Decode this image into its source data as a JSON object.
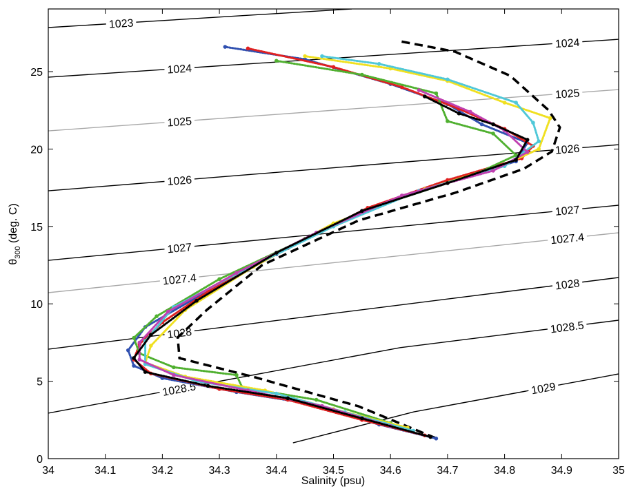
{
  "chart_data": {
    "type": "scatter",
    "xlabel": "Salinity (psu)",
    "ylabel": [
      "θ",
      "300",
      " (deg. C)"
    ],
    "xlim": [
      34,
      35
    ],
    "ylim": [
      0,
      29.05
    ],
    "xticks": [
      34,
      34.1,
      34.2,
      34.3,
      34.4,
      34.5,
      34.6,
      34.7,
      34.8,
      34.9,
      35
    ],
    "yticks": [
      0,
      5,
      10,
      15,
      20,
      25
    ],
    "contours": [
      {
        "labels": [
          "1023"
        ],
        "color": "#000000",
        "x": [
          34,
          34.532
        ],
        "y": [
          27.85,
          29.05
        ]
      },
      {
        "labels": [
          "1024",
          "1024"
        ],
        "color": "#000000",
        "x": [
          34,
          35
        ],
        "y": [
          24.64,
          27.09
        ]
      },
      {
        "labels": [
          "1025",
          "1025"
        ],
        "color": "#a8a8a8",
        "x": [
          34,
          35
        ],
        "y": [
          21.17,
          23.84
        ]
      },
      {
        "labels": [
          "1026",
          "1026"
        ],
        "color": "#000000",
        "x": [
          34,
          35
        ],
        "y": [
          17.3,
          20.28
        ]
      },
      {
        "labels": [
          "1027",
          "1027"
        ],
        "color": "#000000",
        "x": [
          34,
          35
        ],
        "y": [
          12.81,
          16.37
        ]
      },
      {
        "labels": [
          "1027.4",
          "1027.4"
        ],
        "color": "#a8a8a8",
        "x": [
          34,
          35
        ],
        "y": [
          10.72,
          14.59
        ]
      },
      {
        "labels": [
          "1028",
          "1028"
        ],
        "color": "#000000",
        "x": [
          34,
          35
        ],
        "y": [
          7.07,
          11.7
        ]
      },
      {
        "labels": [
          "1028.5",
          "1028.5"
        ],
        "color": "#000000",
        "x": [
          34,
          34.617,
          35
        ],
        "y": [
          2.94,
          7.17,
          8.94
        ]
      },
      {
        "labels": [
          "1029"
        ],
        "color": "#000000",
        "x": [
          34.429,
          34.641,
          35
        ],
        "y": [
          1.02,
          3.02,
          5.47
        ]
      }
    ],
    "envelope": {
      "color": "#000000",
      "x": [
        34.679,
        34.544,
        34.363,
        34.23,
        34.227,
        34.278,
        34.375,
        34.544,
        34.713,
        34.834,
        34.883,
        34.897,
        34.877,
        34.81,
        34.713,
        34.617
      ],
      "y": [
        1.33,
        3.38,
        5.25,
        6.49,
        7.83,
        9.61,
        12.5,
        15.39,
        17.17,
        18.73,
        19.84,
        21.4,
        22.51,
        24.73,
        26.29,
        26.96
      ]
    },
    "series": [
      {
        "color": "#3050b0",
        "x": [
          34.68,
          34.58,
          34.45,
          34.33,
          34.2,
          34.15,
          34.14,
          34.17,
          34.25,
          34.4,
          34.55,
          34.7,
          34.82,
          34.84,
          34.76,
          34.7,
          34.6,
          34.45,
          34.31
        ],
        "values": [
          1.3,
          2.2,
          3.6,
          4.3,
          5.2,
          6.0,
          7.0,
          8.5,
          10.2,
          13.2,
          16.0,
          17.9,
          19.2,
          20.4,
          21.6,
          22.9,
          24.2,
          25.8,
          26.6
        ]
      },
      {
        "color": "#e02020",
        "x": [
          34.66,
          34.55,
          34.42,
          34.3,
          34.18,
          34.15,
          34.16,
          34.2,
          34.28,
          34.42,
          34.56,
          34.7,
          34.83,
          34.85,
          34.8,
          34.72,
          34.62,
          34.5,
          34.35
        ],
        "values": [
          1.5,
          2.5,
          3.8,
          4.5,
          5.5,
          6.4,
          7.4,
          8.8,
          10.8,
          13.6,
          16.2,
          18.0,
          19.4,
          20.2,
          21.3,
          22.6,
          24.0,
          25.3,
          26.5
        ]
      },
      {
        "color": "#50b030",
        "x": [
          34.6,
          34.47,
          34.34,
          34.33,
          34.22,
          34.16,
          34.15,
          34.19,
          34.3,
          34.45,
          34.6,
          34.75,
          34.82,
          34.78,
          34.7,
          34.68,
          34.55,
          34.4
        ],
        "values": [
          2.3,
          3.8,
          4.6,
          5.4,
          5.9,
          6.8,
          7.8,
          9.2,
          11.6,
          14.2,
          16.6,
          18.4,
          19.6,
          21.0,
          21.8,
          23.6,
          24.8,
          25.7
        ]
      },
      {
        "color": "#f0e020",
        "x": [
          34.63,
          34.5,
          34.38,
          34.24,
          34.17,
          34.18,
          34.24,
          34.36,
          34.5,
          34.66,
          34.8,
          34.86,
          34.88,
          34.8,
          34.7,
          34.6,
          34.45
        ],
        "values": [
          2.0,
          3.2,
          4.4,
          5.3,
          6.2,
          7.3,
          9.6,
          12.4,
          15.2,
          17.4,
          19.0,
          20.0,
          22.0,
          23.0,
          24.4,
          25.2,
          26.0
        ]
      },
      {
        "color": "#50c8d8",
        "x": [
          34.64,
          34.52,
          34.4,
          34.26,
          34.17,
          34.17,
          34.22,
          34.35,
          34.5,
          34.65,
          34.8,
          34.86,
          34.85,
          34.82,
          34.7,
          34.58,
          34.48
        ],
        "values": [
          1.8,
          3.0,
          4.2,
          5.0,
          6.1,
          7.6,
          9.8,
          12.3,
          15.0,
          17.3,
          18.9,
          20.5,
          21.7,
          23.0,
          24.5,
          25.5,
          26.0
        ]
      },
      {
        "color": "#c040b0",
        "x": [
          34.6,
          34.48,
          34.35,
          34.22,
          34.16,
          34.16,
          34.21,
          34.33,
          34.47,
          34.62,
          34.78,
          34.84,
          34.8,
          34.74,
          34.65
        ],
        "values": [
          2.1,
          3.4,
          4.4,
          5.4,
          6.4,
          7.5,
          9.5,
          12.0,
          14.6,
          17.0,
          18.6,
          19.8,
          21.2,
          22.4,
          23.8
        ]
      },
      {
        "color": "#000000",
        "x": [
          34.67,
          34.55,
          34.42,
          34.28,
          34.17,
          34.15,
          34.18,
          34.26,
          34.4,
          34.55,
          34.7,
          34.82,
          34.84,
          34.78,
          34.72,
          34.66
        ],
        "values": [
          1.4,
          2.6,
          3.9,
          4.7,
          5.6,
          6.5,
          8.0,
          10.2,
          13.3,
          16.0,
          17.8,
          19.3,
          20.6,
          21.6,
          22.3,
          23.4
        ]
      }
    ]
  }
}
